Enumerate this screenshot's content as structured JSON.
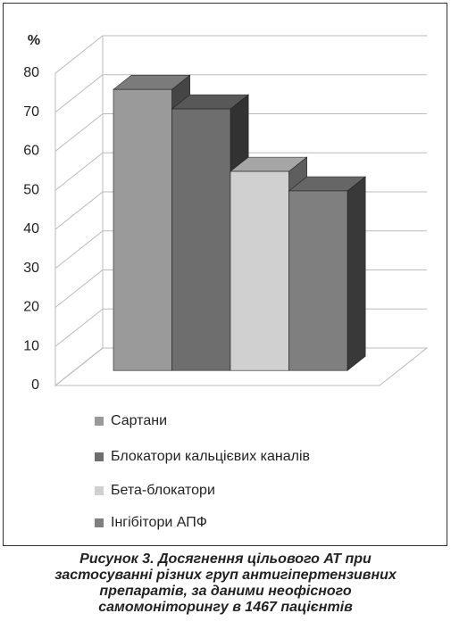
{
  "chart_data": {
    "type": "bar3d",
    "y_label": "%",
    "categories": [
      "Сартани",
      "Блокатори кальцієвих каналів",
      "Бета-блокатори",
      "Інгібітори АПФ"
    ],
    "values": [
      72,
      67,
      51,
      46
    ],
    "colors": [
      "#9a9a9a",
      "#6e6e6e",
      "#d0d0d0",
      "#7f7f7f"
    ],
    "ylim": [
      0,
      80
    ],
    "yticks": [
      0,
      10,
      20,
      30,
      40,
      50,
      60,
      70,
      80
    ],
    "grid": true,
    "caption": "Рисунок 3. Досягнення цільового АТ при застосуванні різних груп антигіпертензивних препаратів, за даними неофісного самомоніторингу в 1467 пацієнтів"
  }
}
